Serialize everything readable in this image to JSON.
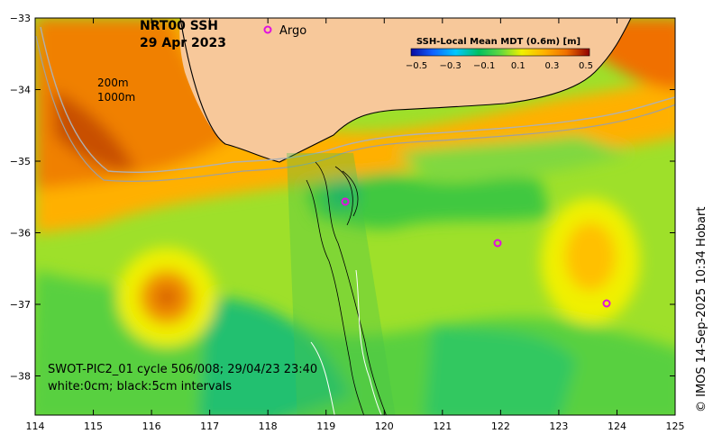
{
  "header": {
    "product": "NRT00 SSH",
    "date": "29 Apr 2023",
    "argo_legend": "Argo",
    "contours": [
      "200m",
      "1000m"
    ]
  },
  "colorbar": {
    "title": "SSH-Local Mean MDT (0.6m) [m]",
    "ticks": [
      "−0.5",
      "−0.3",
      "−0.1",
      "0.1",
      "0.3",
      "0.5"
    ],
    "colors": [
      "#0a0aa0",
      "#1060ff",
      "#00c8ff",
      "#00c060",
      "#60d840",
      "#f0f000",
      "#ffb000",
      "#f07000",
      "#c03000",
      "#900000"
    ]
  },
  "axes": {
    "x_ticks": [
      "114",
      "115",
      "116",
      "117",
      "118",
      "119",
      "120",
      "121",
      "122",
      "123",
      "124",
      "125"
    ],
    "y_ticks": [
      "−33",
      "−34",
      "−35",
      "−36",
      "−37",
      "−38"
    ]
  },
  "footer": {
    "swot_line1": "SWOT-PIC2_01 cycle 506/008; 29/04/23 23:40",
    "swot_line2": "white:0cm; black:5cm intervals"
  },
  "credit": "© IMOS 14-Sep-2025 10:34 Hobart",
  "style": {
    "land": "#f7c89a",
    "argo": "#e010e0"
  }
}
